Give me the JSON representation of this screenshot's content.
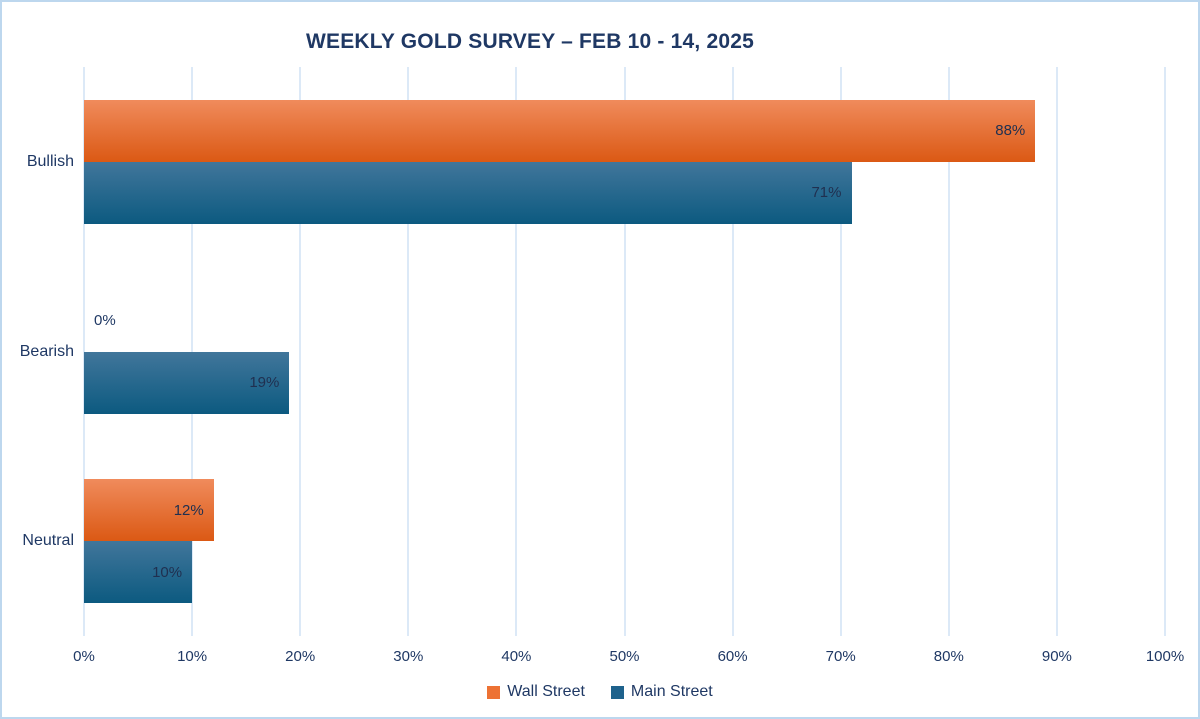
{
  "chart_data": {
    "type": "bar",
    "orientation": "horizontal",
    "title": "WEEKLY GOLD SURVEY – FEB 10 - 14, 2025",
    "categories": [
      "Bullish",
      "Bearish",
      "Neutral"
    ],
    "series": [
      {
        "name": "Wall Street",
        "values": [
          88,
          0,
          12
        ],
        "gradient_top": "#F08B5C",
        "gradient_bottom": "#DB5914",
        "legend_color": "#ED7234"
      },
      {
        "name": "Main Street",
        "values": [
          71,
          19,
          10
        ],
        "gradient_top": "#41769B",
        "gradient_bottom": "#0C5A80",
        "legend_color": "#1E628C"
      }
    ],
    "data_labels": [
      [
        "88%",
        "0%",
        "12%"
      ],
      [
        "71%",
        "19%",
        "10%"
      ]
    ],
    "value_suffix": "%",
    "x_ticks": [
      "0%",
      "10%",
      "20%",
      "30%",
      "40%",
      "50%",
      "60%",
      "70%",
      "80%",
      "90%",
      "100%"
    ],
    "xlim": [
      0,
      100
    ],
    "grid": true,
    "legend_position": "bottom",
    "colors": {
      "title_text": "#1F3864",
      "axis_text": "#1F3864",
      "data_label_text": "#203050",
      "gridline": "#DCE9F7",
      "container_border": "#BDD7EE",
      "background": "#FFFFFF"
    }
  }
}
